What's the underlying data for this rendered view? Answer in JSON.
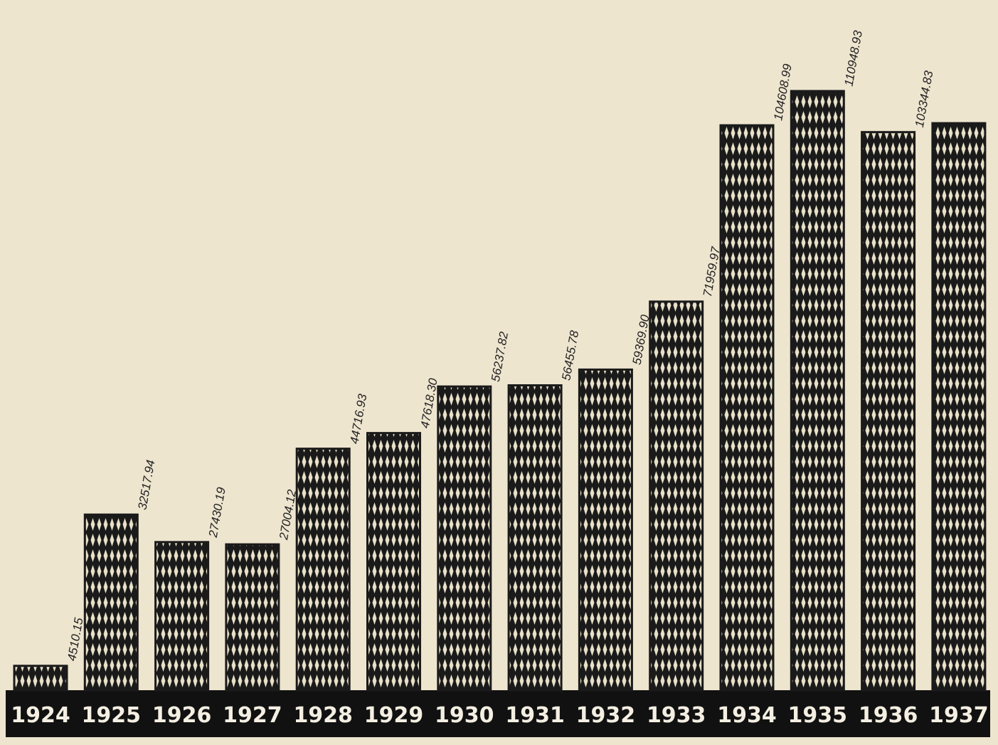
{
  "chart_data": {
    "type": "bar",
    "categories": [
      "1924",
      "1925",
      "1926",
      "1927",
      "1928",
      "1929",
      "1930",
      "1931",
      "1932",
      "1933",
      "1934",
      "1935",
      "1936",
      "1937"
    ],
    "values": [
      4510.15,
      32517.94,
      27430.19,
      27004.12,
      44716.93,
      47618.3,
      56237.82,
      56455.78,
      59369.9,
      71959.97,
      104608.99,
      110948.93,
      103344.83,
      105000
    ],
    "value_labels": [
      "4510.15",
      "32517.94",
      "27430.19",
      "27004.12",
      "44716.93",
      "47618.30",
      "56237.82",
      "56455.78",
      "59369.90",
      "71959.97",
      "104608.99",
      "110948.93",
      "103344.83",
      null
    ],
    "color": "#1a1a1a",
    "ylim": [
      0,
      112000
    ]
  }
}
